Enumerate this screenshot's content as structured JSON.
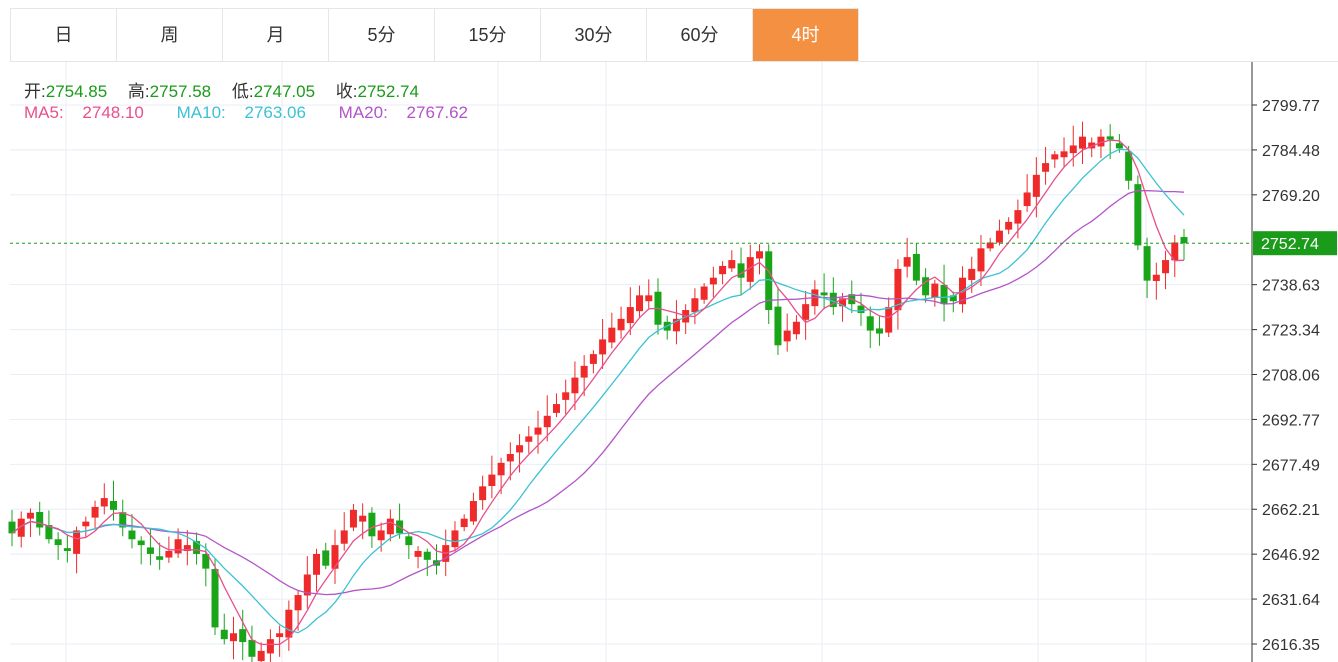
{
  "tabs": [
    {
      "label": "日",
      "name": "tab-day"
    },
    {
      "label": "周",
      "name": "tab-week"
    },
    {
      "label": "月",
      "name": "tab-month"
    },
    {
      "label": "5分",
      "name": "tab-5min"
    },
    {
      "label": "15分",
      "name": "tab-15min"
    },
    {
      "label": "30分",
      "name": "tab-30min"
    },
    {
      "label": "60分",
      "name": "tab-60min"
    },
    {
      "label": "4时",
      "name": "tab-4hour",
      "active": true
    }
  ],
  "ohlc": {
    "open_label": "开:",
    "open": "2754.85",
    "high_label": "高:",
    "high": "2757.58",
    "low_label": "低:",
    "low": "2747.05",
    "close_label": "收:",
    "close": "2752.74"
  },
  "ma": {
    "ma5_label": "MA5:",
    "ma5": "2748.10",
    "ma10_label": "MA10:",
    "ma10": "2763.06",
    "ma20_label": "MA20:",
    "ma20": "2767.62"
  },
  "current_price": "2752.74",
  "colors": {
    "up": "#ee2a2a",
    "down": "#19a419",
    "ma5": "#e8508c",
    "ma10": "#3cc2d3",
    "ma20": "#b255c8",
    "active_tab": "#f39041",
    "price_tag": "#1a9b1a"
  },
  "chart_data": {
    "type": "candlestick",
    "y_ticks": [
      "2799.77",
      "2784.48",
      "2769.20",
      "2752.74",
      "2738.63",
      "2723.34",
      "2708.06",
      "2692.77",
      "2677.49",
      "2662.21",
      "2646.92",
      "2631.64",
      "2616.35"
    ],
    "ylim": [
      2612,
      2815
    ],
    "grid": true,
    "closes": [
      2654,
      2659,
      2661,
      2656,
      2652,
      2650,
      2648,
      2655,
      2658,
      2663,
      2666,
      2662,
      2656,
      2652,
      2650,
      2647,
      2645,
      2648,
      2652,
      2650,
      2647,
      2642,
      2622,
      2618,
      2620,
      2617,
      2612,
      2614,
      2618,
      2620,
      2628,
      2633,
      2640,
      2647,
      2643,
      2650,
      2655,
      2662,
      2660,
      2653,
      2655,
      2659,
      2654,
      2650,
      2648,
      2645,
      2643,
      2650,
      2655,
      2659,
      2665,
      2670,
      2674,
      2678,
      2681,
      2684,
      2687,
      2690,
      2694,
      2698,
      2702,
      2707,
      2711,
      2715,
      2720,
      2724,
      2727,
      2731,
      2735,
      2735,
      2725,
      2723,
      2727,
      2730,
      2734,
      2738,
      2741,
      2745,
      2747,
      2741,
      2748,
      2750,
      2730,
      2718,
      2723,
      2726,
      2732,
      2737,
      2735,
      2731,
      2734,
      2732,
      2729,
      2723,
      2722,
      2731,
      2744,
      2748,
      2740,
      2735,
      2739,
      2732,
      2733,
      2741,
      2744,
      2751,
      2753,
      2757,
      2760,
      2764,
      2770,
      2776,
      2780,
      2783,
      2784,
      2786,
      2789,
      2787,
      2789,
      2788,
      2785,
      2774,
      2752,
      2740,
      2742,
      2747,
      2753,
      2752.74
    ],
    "ma5_last": 2748.1,
    "ma10_last": 2763.06,
    "ma20_last": 2767.62
  }
}
